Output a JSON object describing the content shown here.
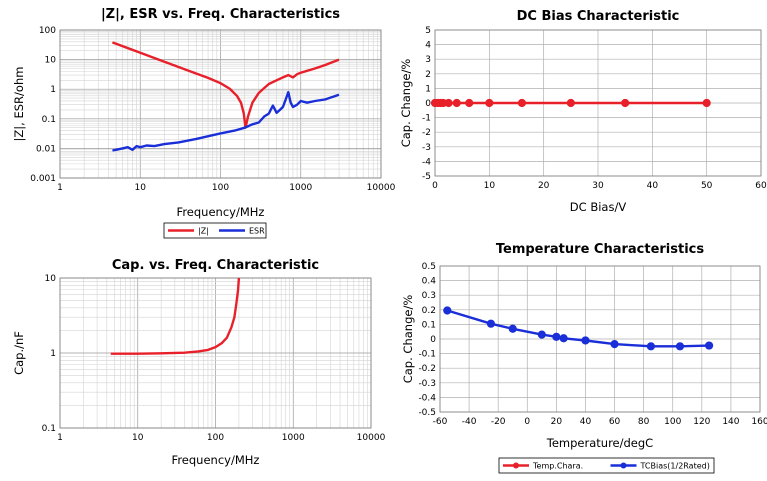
{
  "chart_data": [
    {
      "type": "line",
      "title": "|Z|, ESR vs. Freq. Characteristics",
      "xlabel": "Frequency/MHz",
      "ylabel": "|Z|, ESR/ohm",
      "xscale": "log",
      "yscale": "log",
      "xlim": [
        1,
        10000
      ],
      "ylim": [
        0.001,
        100
      ],
      "x_ticks": [
        "1",
        "10",
        "100",
        "1000",
        "10000"
      ],
      "y_ticks": [
        "100",
        "10",
        "1",
        "0.1",
        "0.01",
        "0.001"
      ],
      "grid": true,
      "legend_position": "bottom",
      "series": [
        {
          "name": "|Z|",
          "color": "#e8202a",
          "x": [
            4.5,
            10,
            20,
            40,
            70,
            100,
            130,
            160,
            180,
            195,
            205,
            220,
            250,
            300,
            400,
            500,
            600,
            700,
            800,
            900,
            1000,
            1500,
            2000,
            3000
          ],
          "y": [
            38,
            17,
            8.5,
            4.2,
            2.4,
            1.6,
            1.05,
            0.6,
            0.35,
            0.15,
            0.05,
            0.12,
            0.35,
            0.75,
            1.5,
            2.0,
            2.5,
            3.0,
            2.5,
            3.2,
            3.6,
            5.0,
            6.5,
            10
          ]
        },
        {
          "name": "ESR",
          "color": "#1a2fd8",
          "x": [
            4.5,
            5,
            6,
            7,
            8,
            9,
            10,
            12,
            15,
            20,
            30,
            50,
            80,
            100,
            150,
            200,
            250,
            300,
            350,
            400,
            450,
            500,
            550,
            600,
            650,
            700,
            750,
            800,
            900,
            1000,
            1200,
            1500,
            2000,
            2500,
            3000
          ],
          "y": [
            0.0085,
            0.009,
            0.01,
            0.011,
            0.009,
            0.012,
            0.011,
            0.0125,
            0.012,
            0.014,
            0.016,
            0.021,
            0.028,
            0.032,
            0.04,
            0.05,
            0.065,
            0.075,
            0.12,
            0.15,
            0.28,
            0.16,
            0.2,
            0.25,
            0.45,
            0.8,
            0.35,
            0.25,
            0.3,
            0.4,
            0.35,
            0.4,
            0.45,
            0.55,
            0.65
          ]
        }
      ]
    },
    {
      "type": "line",
      "title": "DC Bias Characteristic",
      "xlabel": "DC Bias/V",
      "ylabel": "Cap. Change/%",
      "xlim": [
        0,
        60
      ],
      "ylim": [
        -5,
        5
      ],
      "x_ticks": [
        "0",
        "10",
        "20",
        "30",
        "40",
        "50",
        "60"
      ],
      "y_ticks": [
        "5",
        "4",
        "3",
        "2",
        "1",
        "0",
        "-1",
        "-2",
        "-3",
        "-4",
        "-5"
      ],
      "grid": true,
      "series": [
        {
          "color": "#e8202a",
          "x": [
            0,
            0.5,
            1,
            1.5,
            2.5,
            4,
            6.3,
            10,
            16,
            25,
            35,
            50
          ],
          "y": [
            0,
            0,
            0,
            0,
            0,
            0,
            0,
            0,
            0,
            0,
            0,
            0
          ]
        }
      ]
    },
    {
      "type": "line",
      "title": "Cap. vs. Freq. Characteristic",
      "xlabel": "Frequency/MHz",
      "ylabel": "Cap./nF",
      "xscale": "log",
      "yscale": "log",
      "xlim": [
        1,
        10000
      ],
      "ylim": [
        0.1,
        10
      ],
      "x_ticks": [
        "1",
        "10",
        "100",
        "1000",
        "10000"
      ],
      "y_ticks": [
        "10",
        "1",
        "0.1"
      ],
      "grid": true,
      "series": [
        {
          "color": "#e8202a",
          "x": [
            4.5,
            10,
            20,
            40,
            60,
            80,
            100,
            120,
            140,
            160,
            175,
            185,
            195,
            200
          ],
          "y": [
            0.98,
            0.98,
            0.99,
            1.01,
            1.05,
            1.1,
            1.2,
            1.35,
            1.6,
            2.2,
            3.0,
            4.5,
            7.0,
            10
          ]
        }
      ]
    },
    {
      "type": "line",
      "title": "Temperature Characteristics",
      "xlabel": "Temperature/degC",
      "ylabel": "Cap. Change/%",
      "xlim": [
        -60,
        160
      ],
      "ylim": [
        -0.5,
        0.5
      ],
      "x_ticks": [
        "-60",
        "-40",
        "-20",
        "0",
        "20",
        "40",
        "60",
        "80",
        "100",
        "120",
        "140",
        "160"
      ],
      "y_ticks": [
        "0.5",
        "0.4",
        "0.3",
        "0.2",
        "0.1",
        "0",
        "-0.1",
        "-0.2",
        "-0.3",
        "-0.4",
        "-0.5"
      ],
      "grid": true,
      "legend_position": "bottom",
      "series": [
        {
          "name": "Temp.Chara.",
          "color": "#e8202a",
          "x": [],
          "y": []
        },
        {
          "name": "TCBias(1/2Rated)",
          "color": "#1a2fd8",
          "x": [
            -55,
            -25,
            -10,
            10,
            20,
            25,
            40,
            60,
            85,
            105,
            125
          ],
          "y": [
            0.195,
            0.105,
            0.07,
            0.03,
            0.015,
            0.005,
            -0.01,
            -0.035,
            -0.05,
            -0.05,
            -0.045
          ]
        }
      ]
    }
  ]
}
